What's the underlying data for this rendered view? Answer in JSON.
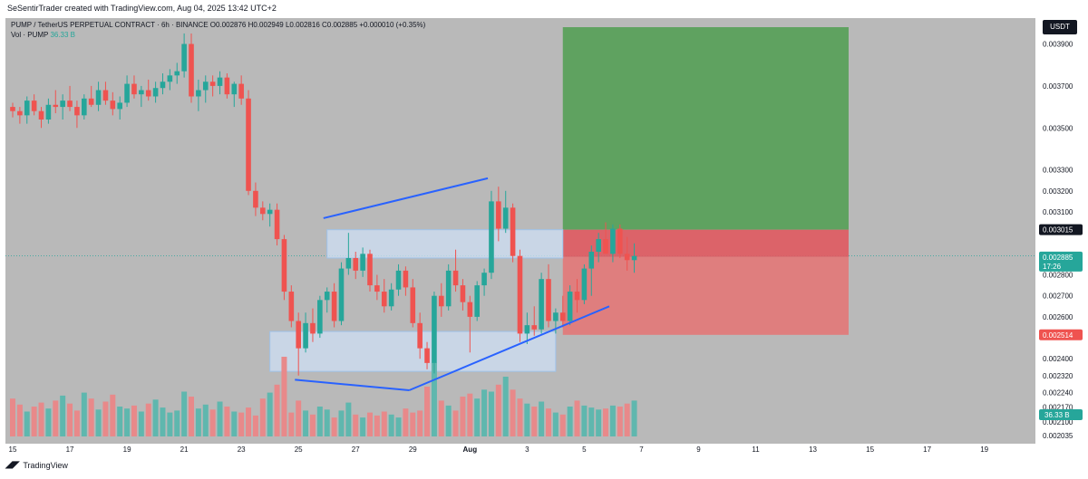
{
  "header": {
    "credit": "SeSentirTrader created with TradingView.com, Aug 04, 2025 13:42 UTC+2"
  },
  "legend": {
    "symbol": "PUMP / TetherUS PERPETUAL CONTRACT · 6h · BINANCE",
    "ohlc": "O0.002876 H0.002949 L0.002816 C0.002885 +0.000010 (+0.35%)",
    "vol_label": "Vol · PUMP",
    "vol_value": "36.33 B"
  },
  "currency": "USDT",
  "footer": {
    "brand": "TradingView"
  },
  "colors": {
    "bull": "#26a69a",
    "bear": "#ef5350",
    "profit_zone": "#4f9d50",
    "loss_zone": "#e57373",
    "zone_box": "#cfe0f5",
    "trendline": "#2962ff"
  },
  "chart_data": {
    "type": "candlestick",
    "title": "PUMP / TetherUS PERPETUAL CONTRACT · 6h · BINANCE",
    "ylim": [
      0.00203,
      0.00398
    ],
    "y_ticks": [
      "0.003900",
      "0.003700",
      "0.003500",
      "0.003300",
      "0.003200",
      "0.003100",
      "0.002800",
      "0.002700",
      "0.002600",
      "0.002400",
      "0.002320",
      "0.002240",
      "0.002170",
      "0.002100",
      "0.002035"
    ],
    "y_tick_values": [
      0.0039,
      0.0037,
      0.0035,
      0.0033,
      0.0032,
      0.0031,
      0.0028,
      0.0027,
      0.0026,
      0.0024,
      0.00232,
      0.00224,
      0.00217,
      0.0021,
      0.002035
    ],
    "x_ticks": [
      "15",
      "17",
      "19",
      "21",
      "23",
      "25",
      "27",
      "29",
      "Aug",
      "3",
      "5",
      "7",
      "9",
      "11",
      "13",
      "15",
      "17",
      "19"
    ],
    "x_tick_index": [
      0,
      8,
      16,
      24,
      32,
      40,
      48,
      56,
      64,
      72,
      80,
      88,
      96,
      104,
      112,
      120,
      128,
      136
    ],
    "price_labels": [
      {
        "value": 0.003015,
        "text": "0.003015",
        "style": "dark"
      },
      {
        "value": 0.002885,
        "text": "0.002885",
        "sub": "17:26",
        "style": "green"
      },
      {
        "value": 0.002514,
        "text": "0.002514",
        "style": "red"
      }
    ],
    "volume_label": "36.33 B",
    "position": {
      "entry": 0.002885,
      "stop": 0.002514,
      "target": 0.003015,
      "target_top": 0.00398,
      "start_index": 77,
      "end_index": 117
    },
    "zones": [
      {
        "name": "upper-range",
        "from": 0.00288,
        "to": 0.003015,
        "start_index": 44,
        "end_index": 77
      },
      {
        "name": "lower-range",
        "from": 0.00234,
        "to": 0.00253,
        "start_index": 36,
        "end_index": 76
      }
    ],
    "trendlines": [
      {
        "name": "upper-channel",
        "points": [
          [
            43.5,
            0.00307
          ],
          [
            66.5,
            0.00326
          ]
        ]
      },
      {
        "name": "lower-flag",
        "points": [
          [
            39.5,
            0.0023
          ],
          [
            55.5,
            0.00225
          ]
        ]
      },
      {
        "name": "rising-support",
        "points": [
          [
            55.5,
            0.00225
          ],
          [
            83.5,
            0.00265
          ]
        ]
      }
    ],
    "candles": [
      [
        0.0036,
        0.00362,
        0.00355,
        0.00358
      ],
      [
        0.00358,
        0.0036,
        0.00352,
        0.00356
      ],
      [
        0.00356,
        0.00365,
        0.00352,
        0.00363
      ],
      [
        0.00363,
        0.00366,
        0.00356,
        0.00358
      ],
      [
        0.00358,
        0.0036,
        0.0035,
        0.00354
      ],
      [
        0.00354,
        0.00364,
        0.00352,
        0.00361
      ],
      [
        0.00361,
        0.00368,
        0.00357,
        0.0036
      ],
      [
        0.0036,
        0.00366,
        0.00354,
        0.00363
      ],
      [
        0.00363,
        0.0037,
        0.00358,
        0.0036
      ],
      [
        0.0036,
        0.00363,
        0.0035,
        0.00356
      ],
      [
        0.00356,
        0.00366,
        0.00354,
        0.00364
      ],
      [
        0.00364,
        0.0037,
        0.0036,
        0.00361
      ],
      [
        0.00361,
        0.00372,
        0.00358,
        0.00368
      ],
      [
        0.00368,
        0.00372,
        0.00361,
        0.00363
      ],
      [
        0.00363,
        0.00367,
        0.00356,
        0.00359
      ],
      [
        0.00359,
        0.00365,
        0.00354,
        0.00362
      ],
      [
        0.00362,
        0.00375,
        0.0036,
        0.00371
      ],
      [
        0.00371,
        0.00375,
        0.00364,
        0.00366
      ],
      [
        0.00366,
        0.0037,
        0.0036,
        0.00368
      ],
      [
        0.00368,
        0.00373,
        0.00363,
        0.00365
      ],
      [
        0.00365,
        0.00372,
        0.00362,
        0.00369
      ],
      [
        0.00369,
        0.00376,
        0.00366,
        0.00372
      ],
      [
        0.00372,
        0.00378,
        0.00368,
        0.00375
      ],
      [
        0.00375,
        0.00381,
        0.00371,
        0.00377
      ],
      [
        0.00377,
        0.00395,
        0.00374,
        0.0039
      ],
      [
        0.0039,
        0.00395,
        0.00362,
        0.00365
      ],
      [
        0.00365,
        0.00373,
        0.00358,
        0.00368
      ],
      [
        0.00368,
        0.00375,
        0.00362,
        0.00372
      ],
      [
        0.00372,
        0.00375,
        0.00365,
        0.0037
      ],
      [
        0.0037,
        0.00377,
        0.00366,
        0.00374
      ],
      [
        0.00374,
        0.00376,
        0.00364,
        0.00366
      ],
      [
        0.00366,
        0.00372,
        0.0036,
        0.00371
      ],
      [
        0.00371,
        0.00375,
        0.00361,
        0.00364
      ],
      [
        0.00364,
        0.00368,
        0.00318,
        0.0032
      ],
      [
        0.0032,
        0.00324,
        0.00308,
        0.00312
      ],
      [
        0.00312,
        0.00315,
        0.00306,
        0.00309
      ],
      [
        0.00309,
        0.00314,
        0.00303,
        0.00311
      ],
      [
        0.00311,
        0.00314,
        0.00294,
        0.00297
      ],
      [
        0.00297,
        0.00299,
        0.00268,
        0.00272
      ],
      [
        0.00272,
        0.00275,
        0.00255,
        0.00258
      ],
      [
        0.00258,
        0.00262,
        0.00232,
        0.00245
      ],
      [
        0.00245,
        0.00262,
        0.00243,
        0.00257
      ],
      [
        0.00257,
        0.00264,
        0.00248,
        0.00252
      ],
      [
        0.00252,
        0.0027,
        0.0025,
        0.00268
      ],
      [
        0.00268,
        0.00274,
        0.00262,
        0.00272
      ],
      [
        0.00272,
        0.00276,
        0.00255,
        0.00258
      ],
      [
        0.00258,
        0.00286,
        0.00256,
        0.00283
      ],
      [
        0.00283,
        0.003,
        0.0028,
        0.00288
      ],
      [
        0.00288,
        0.00291,
        0.00278,
        0.00282
      ],
      [
        0.00282,
        0.00293,
        0.00279,
        0.0029
      ],
      [
        0.0029,
        0.00292,
        0.00272,
        0.00275
      ],
      [
        0.00275,
        0.0028,
        0.00268,
        0.00272
      ],
      [
        0.00272,
        0.00278,
        0.00262,
        0.00265
      ],
      [
        0.00265,
        0.00276,
        0.00263,
        0.00273
      ],
      [
        0.00273,
        0.00285,
        0.0027,
        0.00282
      ],
      [
        0.00282,
        0.00284,
        0.0027,
        0.00274
      ],
      [
        0.00274,
        0.00278,
        0.00255,
        0.00257
      ],
      [
        0.00257,
        0.00262,
        0.0024,
        0.00245
      ],
      [
        0.00245,
        0.00248,
        0.00235,
        0.00238
      ],
      [
        0.00238,
        0.00272,
        0.00233,
        0.0027
      ],
      [
        0.0027,
        0.00276,
        0.0026,
        0.00265
      ],
      [
        0.00265,
        0.00285,
        0.00263,
        0.00282
      ],
      [
        0.00282,
        0.00292,
        0.00272,
        0.00275
      ],
      [
        0.00275,
        0.00278,
        0.00263,
        0.00267
      ],
      [
        0.00267,
        0.0027,
        0.00243,
        0.0026
      ],
      [
        0.0026,
        0.00277,
        0.00258,
        0.00275
      ],
      [
        0.00275,
        0.00283,
        0.0027,
        0.00281
      ],
      [
        0.00281,
        0.0032,
        0.00278,
        0.00315
      ],
      [
        0.00315,
        0.00322,
        0.00296,
        0.00302
      ],
      [
        0.00302,
        0.0032,
        0.003,
        0.00312
      ],
      [
        0.00312,
        0.00314,
        0.00286,
        0.00289
      ],
      [
        0.00289,
        0.00292,
        0.00248,
        0.00252
      ],
      [
        0.00252,
        0.00262,
        0.00247,
        0.00256
      ],
      [
        0.00256,
        0.00265,
        0.00251,
        0.00254
      ],
      [
        0.00254,
        0.00281,
        0.00252,
        0.00278
      ],
      [
        0.00278,
        0.00285,
        0.00255,
        0.00258
      ],
      [
        0.00258,
        0.00264,
        0.00252,
        0.00262
      ],
      [
        0.00262,
        0.0027,
        0.00255,
        0.00258
      ],
      [
        0.00258,
        0.00275,
        0.00256,
        0.00272
      ],
      [
        0.00272,
        0.00278,
        0.00262,
        0.00268
      ],
      [
        0.00268,
        0.00285,
        0.00266,
        0.00283
      ],
      [
        0.00283,
        0.00294,
        0.0027,
        0.00291
      ],
      [
        0.00291,
        0.003,
        0.00286,
        0.00297
      ],
      [
        0.00297,
        0.00305,
        0.0029,
        0.0029
      ],
      [
        0.0029,
        0.00304,
        0.00286,
        0.00302
      ],
      [
        0.00302,
        0.00304,
        0.00288,
        0.0029
      ],
      [
        0.0029,
        0.00298,
        0.00282,
        0.00287
      ],
      [
        0.00287,
        0.00295,
        0.00281,
        0.00289
      ]
    ],
    "volumes": [
      38,
      32,
      25,
      30,
      34,
      28,
      36,
      41,
      33,
      26,
      44,
      38,
      27,
      35,
      42,
      30,
      28,
      31,
      25,
      33,
      37,
      29,
      24,
      26,
      45,
      40,
      28,
      32,
      27,
      35,
      30,
      25,
      24,
      29,
      21,
      38,
      44,
      52,
      80,
      24,
      36,
      26,
      22,
      30,
      27,
      19,
      26,
      34,
      22,
      19,
      24,
      21,
      25,
      22,
      19,
      28,
      24,
      26,
      50,
      74,
      36,
      31,
      26,
      40,
      43,
      38,
      47,
      45,
      52,
      60,
      47,
      38,
      33,
      30,
      35,
      28,
      24,
      22,
      30,
      36,
      31,
      29,
      27,
      28,
      31,
      30,
      33,
      36
    ]
  }
}
